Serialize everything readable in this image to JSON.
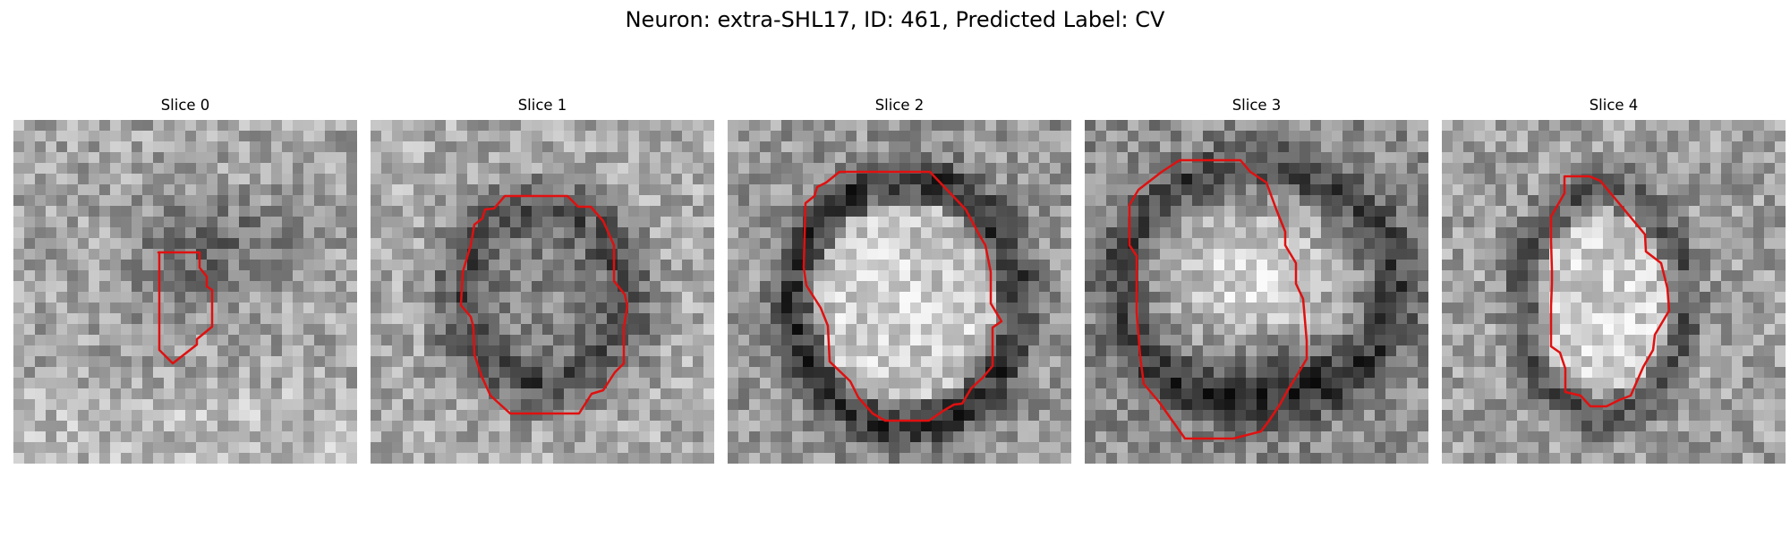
{
  "figure": {
    "title": "Neuron: extra-SHL17, ID: 461, Predicted Label: CV"
  },
  "panels": [
    {
      "title": "Slice 0",
      "seed": 11,
      "motif": "faint"
    },
    {
      "title": "Slice 1",
      "seed": 23,
      "motif": "ring-dark"
    },
    {
      "title": "Slice 2",
      "seed": 37,
      "motif": "ring-bright"
    },
    {
      "title": "Slice 3",
      "seed": 41,
      "motif": "bright-blob"
    },
    {
      "title": "Slice 4",
      "seed": 53,
      "motif": "ring-bright-small"
    }
  ],
  "colors": {
    "contour": "#e01010"
  }
}
